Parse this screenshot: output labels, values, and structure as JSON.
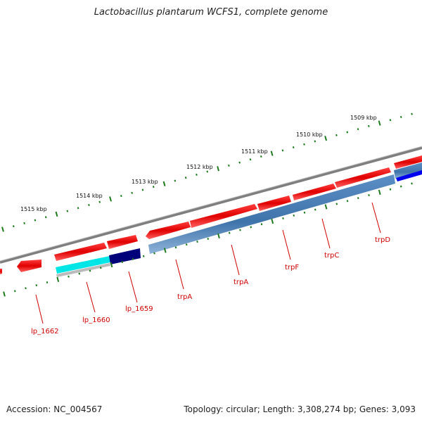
{
  "title": "Lactobacillus plantarum WCFS1, complete genome",
  "footer": {
    "accession": "Accession: NC_004567",
    "topology": "Topology: circular; Length: 3,308,274 bp; Genes: 3,093"
  },
  "colors": {
    "forward_cds": "#e80000",
    "reverse_cds": "#e80000",
    "operon_blue": "#4a7fb5",
    "label": "#d00000",
    "tick": "#1f7a1f",
    "backbone": "#808080",
    "cyan_feature": "#00e5e5",
    "navy_feature": "#00007a",
    "bright_blue": "#0000ee"
  },
  "kbp_labels": [
    "1509 kbp",
    "1510 kbp",
    "1511 kbp",
    "1512 kbp",
    "1513 kbp",
    "1514 kbp",
    "1515 kbp"
  ],
  "genes": [
    {
      "name": "lp_1662"
    },
    {
      "name": "lp_1660"
    },
    {
      "name": "lp_1659"
    },
    {
      "name": "trpA"
    },
    {
      "name": "trpA"
    },
    {
      "name": "trpF"
    },
    {
      "name": "trpC"
    },
    {
      "name": "trpD"
    }
  ]
}
